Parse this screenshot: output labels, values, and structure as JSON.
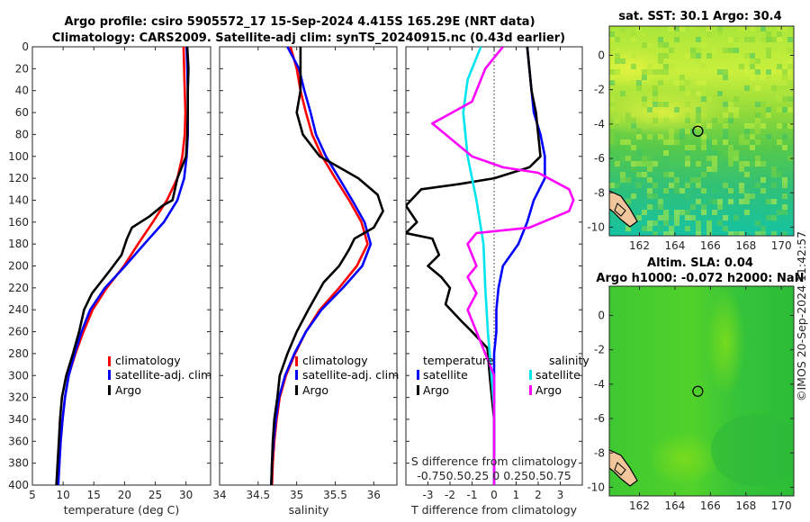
{
  "title": {
    "line1": "Argo profile: csiro 5905572_17 15-Sep-2024 4.415S 165.29E (NRT data)",
    "line2": "Climatology: CARS2009. Satellite-adj clim: synTS_20240915.nc (0.43d earlier)"
  },
  "colors": {
    "red": "#ff0000",
    "blue": "#0000ff",
    "black": "#000000",
    "cyan": "#00e5ee",
    "magenta": "#ff00ff",
    "land": "#f2c69b"
  },
  "depth_ticks": [
    "0",
    "20",
    "40",
    "60",
    "80",
    "100",
    "120",
    "140",
    "160",
    "180",
    "200",
    "220",
    "240",
    "260",
    "280",
    "300",
    "320",
    "340",
    "360",
    "380",
    "400"
  ],
  "chart_data": [
    {
      "type": "line",
      "name": "temperature",
      "xlabel": "temperature (deg C)",
      "ylabel": "depth (dbar)",
      "xlim": [
        5,
        34
      ],
      "ylim": [
        400,
        0
      ],
      "xticks": [
        "5",
        "10",
        "15",
        "20",
        "25",
        "30"
      ],
      "legend": [
        "climatology",
        "satellite-adj. clim",
        "Argo"
      ],
      "series": [
        {
          "name": "climatology",
          "color": "red",
          "points": [
            [
              29.6,
              0
            ],
            [
              29.7,
              20
            ],
            [
              29.8,
              40
            ],
            [
              29.9,
              60
            ],
            [
              29.8,
              80
            ],
            [
              29.4,
              100
            ],
            [
              28.6,
              120
            ],
            [
              26.9,
              140
            ],
            [
              24.6,
              160
            ],
            [
              22.2,
              180
            ],
            [
              19.9,
              200
            ],
            [
              17.1,
              220
            ],
            [
              14.8,
              240
            ],
            [
              13.3,
              260
            ],
            [
              12.0,
              280
            ],
            [
              10.9,
              300
            ],
            [
              10.3,
              320
            ],
            [
              9.9,
              340
            ],
            [
              9.6,
              360
            ],
            [
              9.4,
              380
            ],
            [
              9.2,
              400
            ]
          ]
        },
        {
          "name": "satellite-adj. clim",
          "color": "blue",
          "points": [
            [
              30.1,
              0
            ],
            [
              30.2,
              20
            ],
            [
              30.3,
              40
            ],
            [
              30.3,
              60
            ],
            [
              30.3,
              80
            ],
            [
              30.1,
              100
            ],
            [
              29.7,
              120
            ],
            [
              28.6,
              140
            ],
            [
              26.4,
              160
            ],
            [
              23.2,
              180
            ],
            [
              20.1,
              200
            ],
            [
              16.8,
              220
            ],
            [
              14.4,
              240
            ],
            [
              13.0,
              260
            ],
            [
              11.9,
              280
            ],
            [
              10.9,
              300
            ],
            [
              10.3,
              320
            ],
            [
              9.9,
              340
            ],
            [
              9.6,
              360
            ],
            [
              9.4,
              380
            ],
            [
              9.2,
              400
            ]
          ]
        },
        {
          "name": "Argo",
          "color": "black",
          "points": [
            [
              30.2,
              0
            ],
            [
              30.4,
              20
            ],
            [
              30.3,
              40
            ],
            [
              30.3,
              60
            ],
            [
              30.2,
              80
            ],
            [
              30.0,
              100
            ],
            [
              29.3,
              110
            ],
            [
              28.6,
              120
            ],
            [
              27.8,
              140
            ],
            [
              26.2,
              145
            ],
            [
              24.0,
              155
            ],
            [
              21.2,
              165
            ],
            [
              20.4,
              175
            ],
            [
              19.5,
              190
            ],
            [
              17.5,
              205
            ],
            [
              14.7,
              225
            ],
            [
              13.4,
              240
            ],
            [
              12.6,
              260
            ],
            [
              11.6,
              280
            ],
            [
              10.5,
              300
            ],
            [
              9.8,
              320
            ],
            [
              9.5,
              340
            ],
            [
              9.3,
              360
            ],
            [
              9.1,
              380
            ],
            [
              8.9,
              400
            ]
          ]
        }
      ]
    },
    {
      "type": "line",
      "name": "salinity",
      "xlabel": "salinity",
      "xlim": [
        34,
        36.3
      ],
      "ylim": [
        400,
        0
      ],
      "xticks": [
        "34",
        "34.5",
        "35",
        "35.5",
        "36"
      ],
      "legend": [
        "climatology",
        "satellite-adj. clim",
        "Argo"
      ],
      "series": [
        {
          "name": "climatology",
          "color": "red",
          "points": [
            [
              34.92,
              0
            ],
            [
              35.0,
              20
            ],
            [
              35.05,
              40
            ],
            [
              35.12,
              60
            ],
            [
              35.2,
              80
            ],
            [
              35.33,
              100
            ],
            [
              35.5,
              120
            ],
            [
              35.68,
              140
            ],
            [
              35.84,
              160
            ],
            [
              35.92,
              180
            ],
            [
              35.78,
              200
            ],
            [
              35.55,
              220
            ],
            [
              35.3,
              240
            ],
            [
              35.12,
              260
            ],
            [
              34.98,
              280
            ],
            [
              34.86,
              300
            ],
            [
              34.78,
              320
            ],
            [
              34.74,
              340
            ],
            [
              34.71,
              360
            ],
            [
              34.69,
              380
            ],
            [
              34.68,
              400
            ]
          ]
        },
        {
          "name": "satellite-adj. clim",
          "color": "blue",
          "points": [
            [
              34.88,
              0
            ],
            [
              35.03,
              20
            ],
            [
              35.1,
              40
            ],
            [
              35.18,
              60
            ],
            [
              35.25,
              80
            ],
            [
              35.38,
              100
            ],
            [
              35.55,
              120
            ],
            [
              35.72,
              140
            ],
            [
              35.88,
              160
            ],
            [
              35.96,
              180
            ],
            [
              35.85,
              200
            ],
            [
              35.6,
              220
            ],
            [
              35.32,
              240
            ],
            [
              35.12,
              260
            ],
            [
              34.97,
              280
            ],
            [
              34.85,
              300
            ],
            [
              34.77,
              320
            ],
            [
              34.73,
              340
            ],
            [
              34.7,
              360
            ],
            [
              34.68,
              380
            ],
            [
              34.67,
              400
            ]
          ]
        },
        {
          "name": "Argo",
          "color": "black",
          "points": [
            [
              35.05,
              0
            ],
            [
              35.05,
              20
            ],
            [
              35.05,
              40
            ],
            [
              35.0,
              60
            ],
            [
              35.08,
              80
            ],
            [
              35.3,
              100
            ],
            [
              35.55,
              110
            ],
            [
              35.8,
              120
            ],
            [
              36.05,
              135
            ],
            [
              36.12,
              150
            ],
            [
              36.0,
              165
            ],
            [
              35.75,
              175
            ],
            [
              35.68,
              185
            ],
            [
              35.55,
              200
            ],
            [
              35.35,
              215
            ],
            [
              35.15,
              240
            ],
            [
              35.0,
              260
            ],
            [
              34.88,
              280
            ],
            [
              34.78,
              300
            ],
            [
              34.75,
              320
            ],
            [
              34.71,
              340
            ],
            [
              34.69,
              360
            ],
            [
              34.68,
              380
            ],
            [
              34.67,
              400
            ]
          ]
        }
      ]
    },
    {
      "type": "line",
      "name": "difference",
      "xlabel": "T difference from climatology",
      "top_label": "S difference from climatology",
      "top_ticks": "-0.750.50.25 0 0.250.50.75",
      "xlim": [
        -4,
        4
      ],
      "ylim": [
        400,
        0
      ],
      "xticks": [
        "-3",
        "-2",
        "-1",
        "0",
        "1",
        "2",
        "3"
      ],
      "legend_temperature_title": "temperature",
      "legend_salinity_title": "salinity",
      "legend_temperature": [
        "satellite",
        "Argo"
      ],
      "legend_salinity": [
        "satellite",
        "Argo"
      ],
      "series": [
        {
          "name": "T satellite",
          "color": "blue",
          "points": [
            [
              1.5,
              0
            ],
            [
              1.6,
              20
            ],
            [
              1.7,
              40
            ],
            [
              1.8,
              60
            ],
            [
              2.1,
              80
            ],
            [
              2.3,
              100
            ],
            [
              2.3,
              120
            ],
            [
              1.8,
              140
            ],
            [
              1.5,
              160
            ],
            [
              1.1,
              180
            ],
            [
              0.4,
              200
            ],
            [
              0.2,
              220
            ],
            [
              0.1,
              240
            ],
            [
              0.1,
              260
            ],
            [
              0.0,
              280
            ],
            [
              0.0,
              300
            ],
            [
              0.0,
              320
            ],
            [
              0.0,
              340
            ],
            [
              0.0,
              360
            ],
            [
              0.0,
              380
            ],
            [
              0.0,
              400
            ]
          ]
        },
        {
          "name": "T Argo",
          "color": "black",
          "points": [
            [
              1.5,
              0
            ],
            [
              1.6,
              20
            ],
            [
              1.7,
              40
            ],
            [
              1.9,
              60
            ],
            [
              2.0,
              80
            ],
            [
              2.1,
              100
            ],
            [
              1.6,
              110
            ],
            [
              0.0,
              120
            ],
            [
              -1.5,
              125
            ],
            [
              -3.3,
              130
            ],
            [
              -4.0,
              145
            ],
            [
              -3.5,
              160
            ],
            [
              -4.0,
              170
            ],
            [
              -2.8,
              175
            ],
            [
              -2.5,
              190
            ],
            [
              -3.0,
              200
            ],
            [
              -2.4,
              210
            ],
            [
              -2.0,
              220
            ],
            [
              -2.2,
              235
            ],
            [
              -1.5,
              250
            ],
            [
              -1.0,
              260
            ],
            [
              -0.3,
              275
            ],
            [
              -0.2,
              300
            ],
            [
              -0.1,
              320
            ],
            [
              0.0,
              340
            ],
            [
              0.0,
              360
            ],
            [
              0.0,
              380
            ],
            [
              0.0,
              400
            ]
          ]
        },
        {
          "name": "S satellite",
          "color": "cyan",
          "points": [
            [
              -0.15,
              0
            ],
            [
              -0.3,
              30
            ],
            [
              -0.35,
              60
            ],
            [
              -0.3,
              100
            ],
            [
              -0.2,
              140
            ],
            [
              -0.12,
              180
            ],
            [
              -0.1,
              220
            ],
            [
              -0.07,
              260
            ],
            [
              -0.03,
              300
            ],
            [
              0.0,
              330
            ],
            [
              0.0,
              360
            ],
            [
              0.0,
              380
            ],
            [
              0.0,
              400
            ]
          ]
        },
        {
          "name": "S Argo",
          "color": "magenta",
          "points": [
            [
              0.1,
              0
            ],
            [
              -0.1,
              20
            ],
            [
              -0.25,
              50
            ],
            [
              -0.7,
              70
            ],
            [
              -0.55,
              80
            ],
            [
              -0.25,
              100
            ],
            [
              0.1,
              110
            ],
            [
              0.5,
              115
            ],
            [
              0.85,
              130
            ],
            [
              0.9,
              140
            ],
            [
              0.85,
              150
            ],
            [
              0.4,
              165
            ],
            [
              -0.2,
              170
            ],
            [
              -0.3,
              180
            ],
            [
              -0.2,
              200
            ],
            [
              -0.3,
              210
            ],
            [
              -0.2,
              225
            ],
            [
              -0.3,
              240
            ],
            [
              -0.2,
              260
            ],
            [
              -0.1,
              280
            ],
            [
              0.0,
              300
            ],
            [
              0.0,
              320
            ],
            [
              0.0,
              340
            ],
            [
              0.0,
              360
            ],
            [
              0.0,
              380
            ],
            [
              0.0,
              400
            ]
          ]
        }
      ]
    },
    {
      "type": "heatmap",
      "name": "sst_map",
      "title": "sat. SST: 30.1 Argo: 30.4",
      "xlim": [
        160.3,
        170.7
      ],
      "ylim": [
        -10.5,
        1.7
      ],
      "xticks": [
        "162",
        "164",
        "166",
        "168",
        "170"
      ],
      "yticks": [
        "0",
        "-2",
        "-4",
        "-6",
        "-8",
        "-10"
      ],
      "marker": [
        165.29,
        -4.415
      ]
    },
    {
      "type": "heatmap",
      "name": "sla_map",
      "title": "Altim. SLA: 0.04",
      "subtitle": "Argo h1000: -0.072 h2000: NaN",
      "xlim": [
        160.3,
        170.7
      ],
      "ylim": [
        -10.5,
        1.7
      ],
      "xticks": [
        "162",
        "164",
        "166",
        "168",
        "170"
      ],
      "yticks": [
        "0",
        "-2",
        "-4",
        "-6",
        "-8",
        "-10"
      ],
      "marker": [
        165.29,
        -4.415
      ]
    }
  ],
  "side_label": "©IMOS 20-Sep-2024 11:42:57"
}
